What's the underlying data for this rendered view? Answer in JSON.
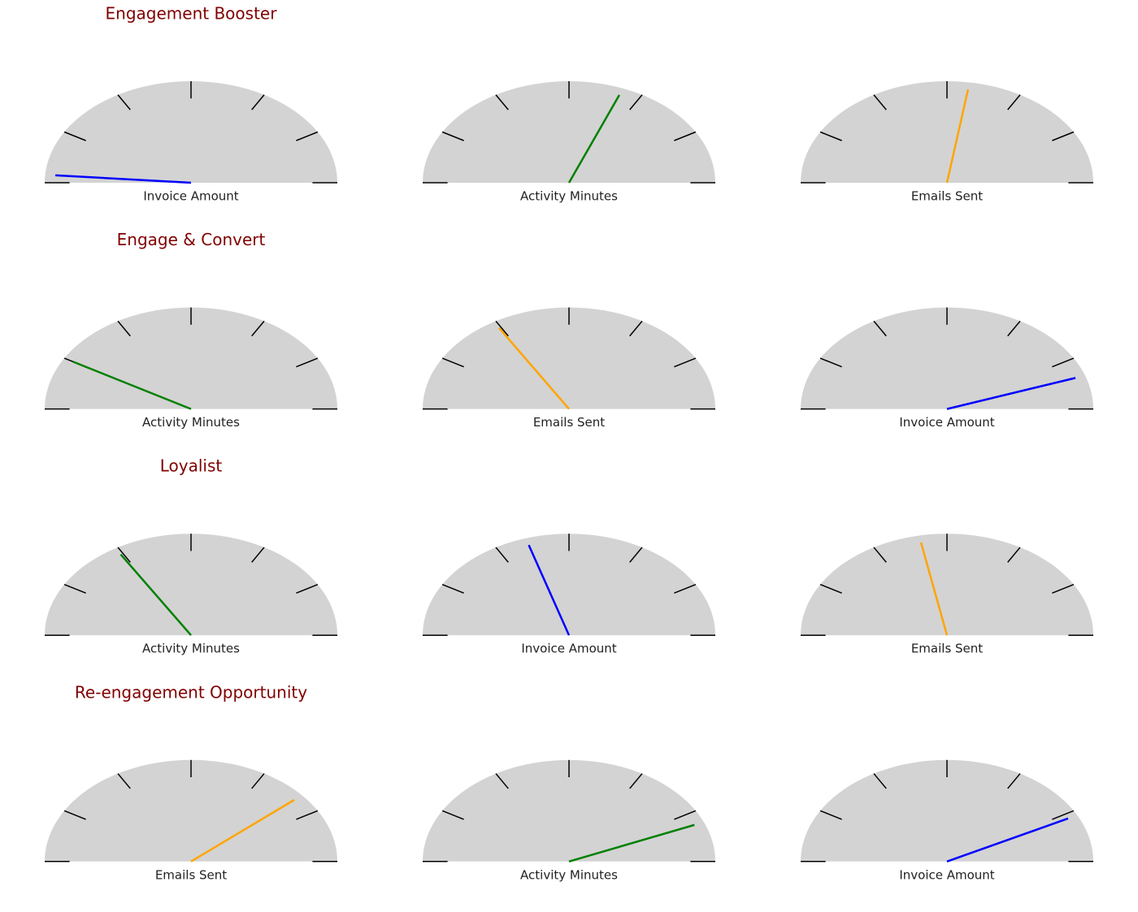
{
  "chart_data": [
    {
      "type": "gauge",
      "title": "Engagement Booster",
      "label": "Invoice Amount",
      "value": 4.5,
      "color": "blue",
      "ylim": [
        0,
        180
      ],
      "yticks": [
        0,
        30,
        60,
        90,
        120,
        150,
        180
      ]
    },
    {
      "type": "gauge",
      "label": "Activity Minutes",
      "value": 111.7,
      "color": "green",
      "ylim": [
        0,
        180
      ],
      "yticks": [
        0,
        30,
        60,
        90,
        120,
        150,
        180
      ]
    },
    {
      "type": "gauge",
      "label": "Emails Sent",
      "value": 98.9,
      "color": "orange",
      "ylim": [
        0,
        180
      ],
      "yticks": [
        0,
        30,
        60,
        90,
        120,
        150,
        180
      ]
    },
    {
      "type": "gauge",
      "title": "Engage & Convert",
      "label": "Activity Minutes",
      "value": 30,
      "color": "green",
      "ylim": [
        0,
        180
      ],
      "yticks": [
        0,
        30,
        60,
        90,
        120,
        150,
        180
      ]
    },
    {
      "type": "gauge",
      "label": "Emails Sent",
      "value": 59.1,
      "color": "orange",
      "ylim": [
        0,
        180
      ],
      "yticks": [
        0,
        30,
        60,
        90,
        120,
        150,
        180
      ]
    },
    {
      "type": "gauge",
      "label": "Invoice Amount",
      "value": 160.8,
      "color": "blue",
      "ylim": [
        0,
        180
      ],
      "yticks": [
        0,
        30,
        60,
        90,
        120,
        150,
        180
      ]
    },
    {
      "type": "gauge",
      "title": "Loyalist",
      "label": "Activity Minutes",
      "value": 58.9,
      "color": "green",
      "ylim": [
        0,
        180
      ],
      "yticks": [
        0,
        30,
        60,
        90,
        120,
        150,
        180
      ]
    },
    {
      "type": "gauge",
      "label": "Invoice Amount",
      "value": 72.8,
      "color": "blue",
      "ylim": [
        0,
        180
      ],
      "yticks": [
        0,
        30,
        60,
        90,
        120,
        150,
        180
      ]
    },
    {
      "type": "gauge",
      "label": "Emails Sent",
      "value": 79,
      "color": "orange",
      "ylim": [
        0,
        180
      ],
      "yticks": [
        0,
        30,
        60,
        90,
        120,
        150,
        180
      ]
    },
    {
      "type": "gauge",
      "title": "Re-engagement Opportunity",
      "label": "Emails Sent",
      "value": 139.3,
      "color": "orange",
      "ylim": [
        0,
        180
      ],
      "yticks": [
        0,
        30,
        60,
        90,
        120,
        150,
        180
      ]
    },
    {
      "type": "gauge",
      "label": "Activity Minutes",
      "value": 157.2,
      "color": "green",
      "ylim": [
        0,
        180
      ],
      "yticks": [
        0,
        30,
        60,
        90,
        120,
        150,
        180
      ]
    },
    {
      "type": "gauge",
      "label": "Invoice Amount",
      "value": 152.9,
      "color": "blue",
      "ylim": [
        0,
        180
      ],
      "yticks": [
        0,
        30,
        60,
        90,
        120,
        150,
        180
      ]
    }
  ]
}
